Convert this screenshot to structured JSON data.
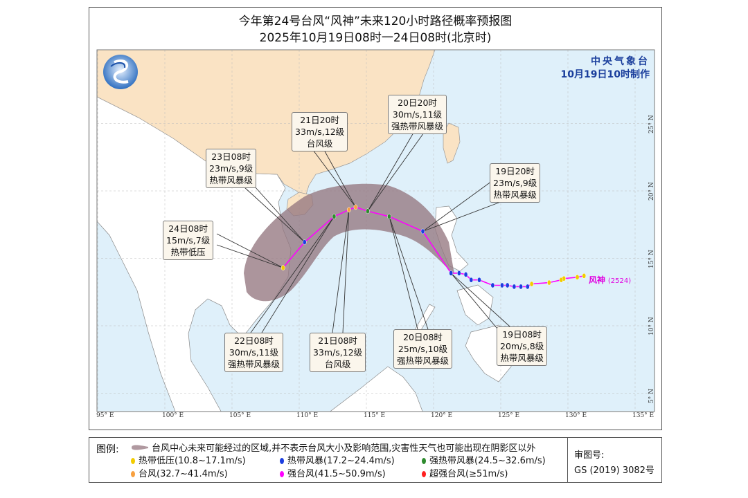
{
  "title": "今年第24号台风“风神”未来120小时路径概率预报图",
  "subtitle": "2025年10月19日08时一24日08时(北京时)",
  "agency": {
    "name": "中央气象台",
    "issued": "10月19日10时制作"
  },
  "typhoon": {
    "name": "风神",
    "code": "(2524)"
  },
  "colors": {
    "track": "#ff00ff",
    "cone": "#957780",
    "sea": "#dff0fa",
    "china": "#fae3c4",
    "land": "#ffffff",
    "TD": "#f2cc00",
    "TS": "#1c3ee0",
    "STS": "#2e8b2e",
    "TY": "#f7a040",
    "STY": "#ff00ff",
    "SuperTY": "#ff2020"
  },
  "axes": {
    "lon_ticks": [
      "95° E",
      "100° E",
      "105° E",
      "110° E",
      "115° E",
      "120° E",
      "125° E",
      "130° E",
      "135° E"
    ],
    "lat_ticks": [
      "5° N",
      "10° N",
      "15° N",
      "20° N",
      "25° N"
    ]
  },
  "past_track": [
    {
      "lon": 131.2,
      "lat": 13.7,
      "cat": "TD"
    },
    {
      "lon": 130.7,
      "lat": 13.6,
      "cat": "TD"
    },
    {
      "lon": 129.7,
      "lat": 13.5,
      "cat": "TD"
    },
    {
      "lon": 129.5,
      "lat": 13.4,
      "cat": "TD"
    },
    {
      "lon": 128.6,
      "lat": 13.2,
      "cat": "TD"
    },
    {
      "lon": 127.3,
      "lat": 13.1,
      "cat": "TD"
    },
    {
      "lon": 127.0,
      "lat": 12.9,
      "cat": "TS"
    },
    {
      "lon": 126.5,
      "lat": 12.9,
      "cat": "TS"
    },
    {
      "lon": 126.0,
      "lat": 12.9,
      "cat": "TS"
    },
    {
      "lon": 125.5,
      "lat": 13.0,
      "cat": "TS"
    },
    {
      "lon": 125.1,
      "lat": 13.0,
      "cat": "TS"
    },
    {
      "lon": 124.4,
      "lat": 13.0,
      "cat": "TS"
    },
    {
      "lon": 123.4,
      "lat": 13.4,
      "cat": "TS"
    },
    {
      "lon": 122.8,
      "lat": 13.4,
      "cat": "TS"
    },
    {
      "lon": 122.4,
      "lat": 13.8,
      "cat": "TS"
    },
    {
      "lon": 121.9,
      "lat": 13.9,
      "cat": "TS"
    }
  ],
  "forecast": [
    {
      "time": "19日08时",
      "wind": "20m/s,8级",
      "level": "热带风暴级",
      "lon": 121.3,
      "lat": 13.9,
      "cat": "TS"
    },
    {
      "time": "19日20时",
      "wind": "23m/s,9级",
      "level": "热带风暴级",
      "lon": 119.2,
      "lat": 17.0,
      "cat": "TS"
    },
    {
      "time": "20日08时",
      "wind": "25m/s,10级",
      "level": "强热带风暴级",
      "lon": 116.7,
      "lat": 18.1,
      "cat": "STS"
    },
    {
      "time": "20日20时",
      "wind": "30m/s,11级",
      "level": "强热带风暴级",
      "lon": 115.1,
      "lat": 18.5,
      "cat": "STS"
    },
    {
      "time": "21日08时",
      "wind": "33m/s,12级",
      "level": "台风级",
      "lon": 113.7,
      "lat": 18.6,
      "cat": "TY"
    },
    {
      "time": "21日20时",
      "wind": "33m/s,12级",
      "level": "台风级",
      "lon": 114.2,
      "lat": 18.8,
      "cat": "TY"
    },
    {
      "time": "22日08时",
      "wind": "30m/s,11级",
      "level": "强热带风暴级",
      "lon": 112.6,
      "lat": 18.1,
      "cat": "STS"
    },
    {
      "time": "23日08时",
      "wind": "23m/s,9级",
      "level": "热带风暴级",
      "lon": 110.4,
      "lat": 16.2,
      "cat": "TS"
    },
    {
      "time": "24日08时",
      "wind": "15m/s,7级",
      "level": "热带低压",
      "lon": 108.8,
      "lat": 14.3,
      "cat": "TD"
    }
  ],
  "legend": {
    "title": "图例:",
    "cone": "台风中心未来可能经过的区域,并不表示台风大小及影响范围,灾害性天气也可能出现在阴影区以外",
    "items": [
      {
        "label": "热带低压(10.8~17.1m/s)",
        "cat": "TD"
      },
      {
        "label": "热带风暴(17.2~24.4m/s)",
        "cat": "TS"
      },
      {
        "label": "强热带风暴(24.5~32.6m/s)",
        "cat": "STS"
      },
      {
        "label": "台风(32.7~41.4m/s)",
        "cat": "TY"
      },
      {
        "label": "强台风(41.5~50.9m/s)",
        "cat": "STY"
      },
      {
        "label": "超强台风(≥51m/s)",
        "cat": "SuperTY"
      }
    ],
    "review_label": "审图号:",
    "review_no": "GS (2019) 3082号"
  }
}
